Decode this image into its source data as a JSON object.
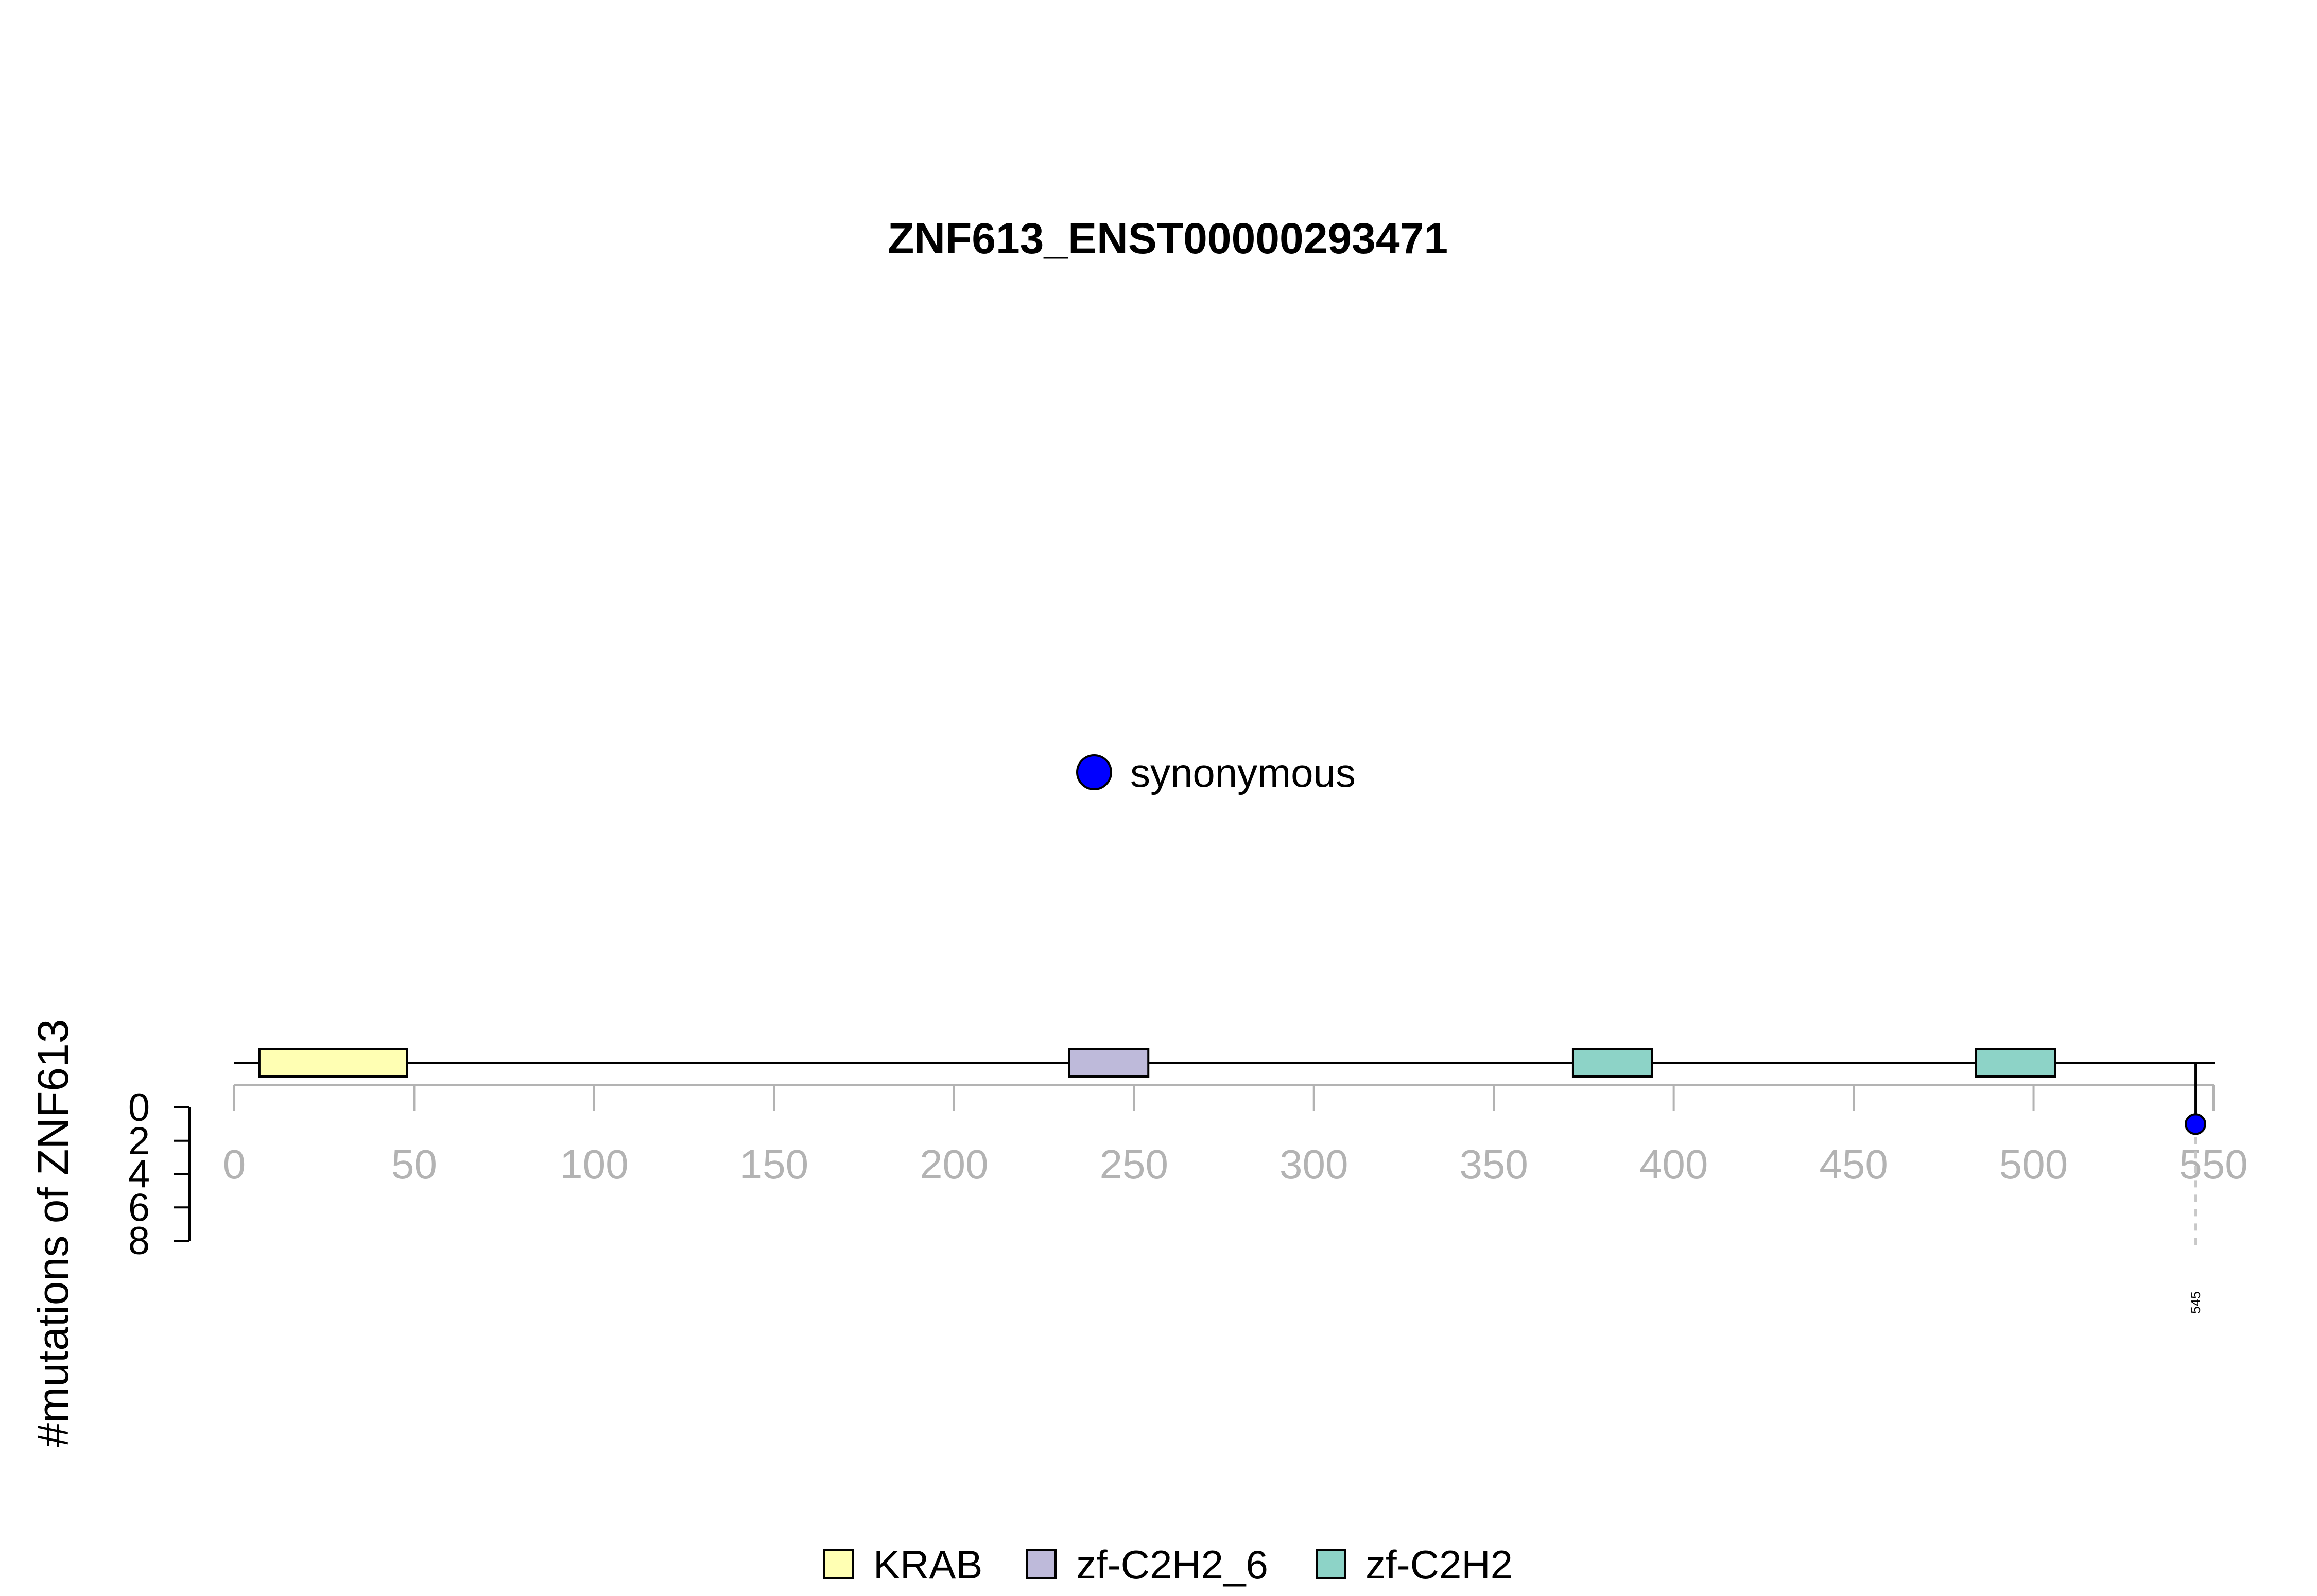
{
  "chart_data": {
    "type": "lollipop",
    "title": "ZNF613_ENST00000293471",
    "ylabel": "#mutations of ZNF613",
    "protein_length": 550,
    "x_ticks": [
      0,
      50,
      100,
      150,
      200,
      250,
      300,
      350,
      400,
      450,
      500,
      550
    ],
    "y_ticks": [
      0,
      2,
      4,
      6,
      8
    ],
    "xlim": [
      0,
      550
    ],
    "ylim": [
      0,
      8
    ],
    "domains": [
      {
        "name": "KRAB",
        "start": 7,
        "end": 48,
        "color": "#FFFFB3"
      },
      {
        "name": "zf-C2H2_6",
        "start": 232,
        "end": 254,
        "color": "#BEBADA"
      },
      {
        "name": "zf-C2H2",
        "start": 372,
        "end": 394,
        "color": "#8DD3C7"
      },
      {
        "name": "zf-C2H2",
        "start": 484,
        "end": 506,
        "color": "#8DD3C7"
      }
    ],
    "mutations": [
      {
        "position": 545,
        "count": 1,
        "label": "545",
        "type": "synonymous",
        "color": "#0000FF"
      }
    ],
    "mutation_legend": [
      {
        "label": "synonymous",
        "color": "#0000FF"
      }
    ],
    "domain_legend": [
      {
        "label": "KRAB",
        "color": "#FFFFB3"
      },
      {
        "label": "zf-C2H2_6",
        "color": "#BEBADA"
      },
      {
        "label": "zf-C2H2",
        "color": "#8DD3C7"
      }
    ]
  }
}
